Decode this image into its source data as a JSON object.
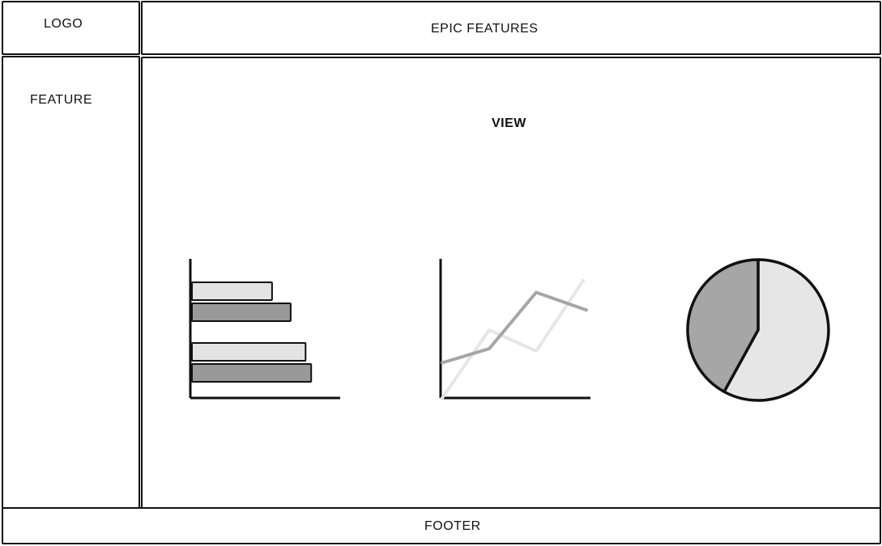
{
  "header": {
    "logo": "LOGO",
    "title": "EPIC FEATURES"
  },
  "sidebar": {
    "item": "FEATURE"
  },
  "main": {
    "view_label": "VIEW"
  },
  "footer": {
    "label": "FOOTER"
  },
  "chart_data": [
    {
      "type": "bar",
      "orientation": "horizontal",
      "series": [
        {
          "values": [
            43,
            61
          ],
          "color": "#e3e3e3"
        },
        {
          "values": [
            53,
            64
          ],
          "color": "#999999"
        }
      ]
    },
    {
      "type": "line",
      "series": [
        {
          "values": [
            0,
            58,
            40,
            100
          ],
          "color": "#e6e6e6"
        },
        {
          "values": [
            30,
            42,
            90,
            75
          ],
          "color": "#a6a6a6"
        }
      ]
    },
    {
      "type": "pie",
      "slices": [
        {
          "value": 58,
          "color": "#e6e6e6"
        },
        {
          "value": 42,
          "color": "#a6a6a6"
        }
      ]
    }
  ]
}
